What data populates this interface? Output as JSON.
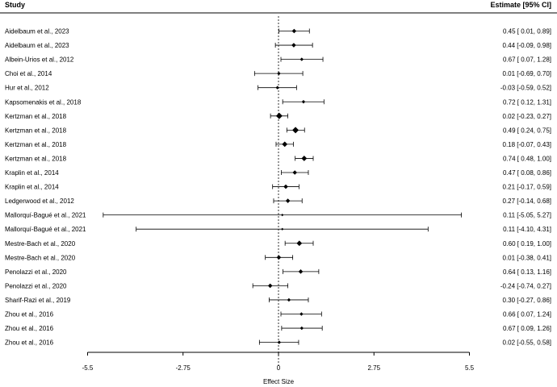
{
  "chart_data": {
    "type": "forest",
    "header_left": "Study",
    "header_right": "Estimate [95% CI]",
    "xlabel": "Effect Size",
    "xlim": [
      -5.5,
      5.5
    ],
    "xticks": [
      -5.5,
      -2.75,
      0,
      2.75,
      5.5
    ],
    "xtick_labels": [
      "-5.5",
      "-2.75",
      "0",
      "2.75",
      "5.5"
    ],
    "reference_line": 0,
    "rows": [
      {
        "study": "Aidelbaum et al., 2023",
        "est": 0.45,
        "lo": 0.01,
        "hi": 0.89,
        "label": "0.45 [ 0.01, 0.89]",
        "size": 3
      },
      {
        "study": "Aidelbaum et al., 2023",
        "est": 0.44,
        "lo": -0.09,
        "hi": 0.98,
        "label": "0.44 [-0.09, 0.98]",
        "size": 3
      },
      {
        "study": "Albein-Urios et al., 2012",
        "est": 0.67,
        "lo": 0.07,
        "hi": 1.28,
        "label": "0.67 [ 0.07, 1.28]",
        "size": 2
      },
      {
        "study": "Choi et al., 2014",
        "est": 0.01,
        "lo": -0.69,
        "hi": 0.7,
        "label": "0.01 [-0.69, 0.70]",
        "size": 2
      },
      {
        "study": "Hur et al., 2012",
        "est": -0.03,
        "lo": -0.59,
        "hi": 0.52,
        "label": "-0.03 [-0.59, 0.52]",
        "size": 2
      },
      {
        "study": "Kapsomenakis et al., 2018",
        "est": 0.72,
        "lo": 0.12,
        "hi": 1.31,
        "label": "0.72 [ 0.12, 1.31]",
        "size": 2
      },
      {
        "study": "Kertzman et al., 2018",
        "est": 0.02,
        "lo": -0.23,
        "hi": 0.27,
        "label": "0.02 [-0.23, 0.27]",
        "size": 5
      },
      {
        "study": "Kertzman et al., 2018",
        "est": 0.49,
        "lo": 0.24,
        "hi": 0.75,
        "label": "0.49 [ 0.24, 0.75]",
        "size": 5
      },
      {
        "study": "Kertzman et al., 2018",
        "est": 0.18,
        "lo": -0.07,
        "hi": 0.43,
        "label": "0.18 [-0.07, 0.43]",
        "size": 4
      },
      {
        "study": "Kertzman et al., 2018",
        "est": 0.74,
        "lo": 0.48,
        "hi": 1.0,
        "label": "0.74 [ 0.48, 1.00]",
        "size": 4
      },
      {
        "study": "Kraplin et al., 2014",
        "est": 0.47,
        "lo": 0.08,
        "hi": 0.86,
        "label": "0.47 [ 0.08, 0.86]",
        "size": 3
      },
      {
        "study": "Kraplin et al., 2014",
        "est": 0.21,
        "lo": -0.17,
        "hi": 0.59,
        "label": "0.21 [-0.17, 0.59]",
        "size": 3
      },
      {
        "study": "Ledgerwood et al., 2012",
        "est": 0.27,
        "lo": -0.14,
        "hi": 0.68,
        "label": "0.27 [-0.14, 0.68]",
        "size": 3
      },
      {
        "study": "Mallorquí-Bagué et al., 2021",
        "est": 0.11,
        "lo": -5.05,
        "hi": 5.27,
        "label": "0.11 [-5.05, 5.27]",
        "size": 1
      },
      {
        "study": "Mallorquí-Bagué et al., 2021",
        "est": 0.11,
        "lo": -4.1,
        "hi": 4.31,
        "label": "0.11 [-4.10, 4.31]",
        "size": 1
      },
      {
        "study": "Mestre-Bach et al., 2020",
        "est": 0.6,
        "lo": 0.19,
        "hi": 1.0,
        "label": "0.60 [ 0.19, 1.00]",
        "size": 4
      },
      {
        "study": "Mestre-Bach et al., 2020",
        "est": 0.01,
        "lo": -0.38,
        "hi": 0.41,
        "label": "0.01 [-0.38, 0.41]",
        "size": 3
      },
      {
        "study": "Penolazzi et al., 2020",
        "est": 0.64,
        "lo": 0.13,
        "hi": 1.16,
        "label": "0.64 [ 0.13, 1.16]",
        "size": 3
      },
      {
        "study": "Penolazzi et al., 2020",
        "est": -0.24,
        "lo": -0.74,
        "hi": 0.27,
        "label": "-0.24 [-0.74, 0.27]",
        "size": 3
      },
      {
        "study": "Sharif-Razi et al., 2019",
        "est": 0.3,
        "lo": -0.27,
        "hi": 0.86,
        "label": "0.30 [-0.27, 0.86]",
        "size": 2
      },
      {
        "study": "Zhou et al., 2016",
        "est": 0.66,
        "lo": 0.07,
        "hi": 1.24,
        "label": "0.66 [ 0.07, 1.24]",
        "size": 2
      },
      {
        "study": "Zhou et al., 2016",
        "est": 0.67,
        "lo": 0.09,
        "hi": 1.26,
        "label": "0.67 [ 0.09, 1.26]",
        "size": 2
      },
      {
        "study": "Zhou et al., 2016",
        "est": 0.02,
        "lo": -0.55,
        "hi": 0.58,
        "label": "0.02 [-0.55, 0.58]",
        "size": 2
      }
    ]
  }
}
